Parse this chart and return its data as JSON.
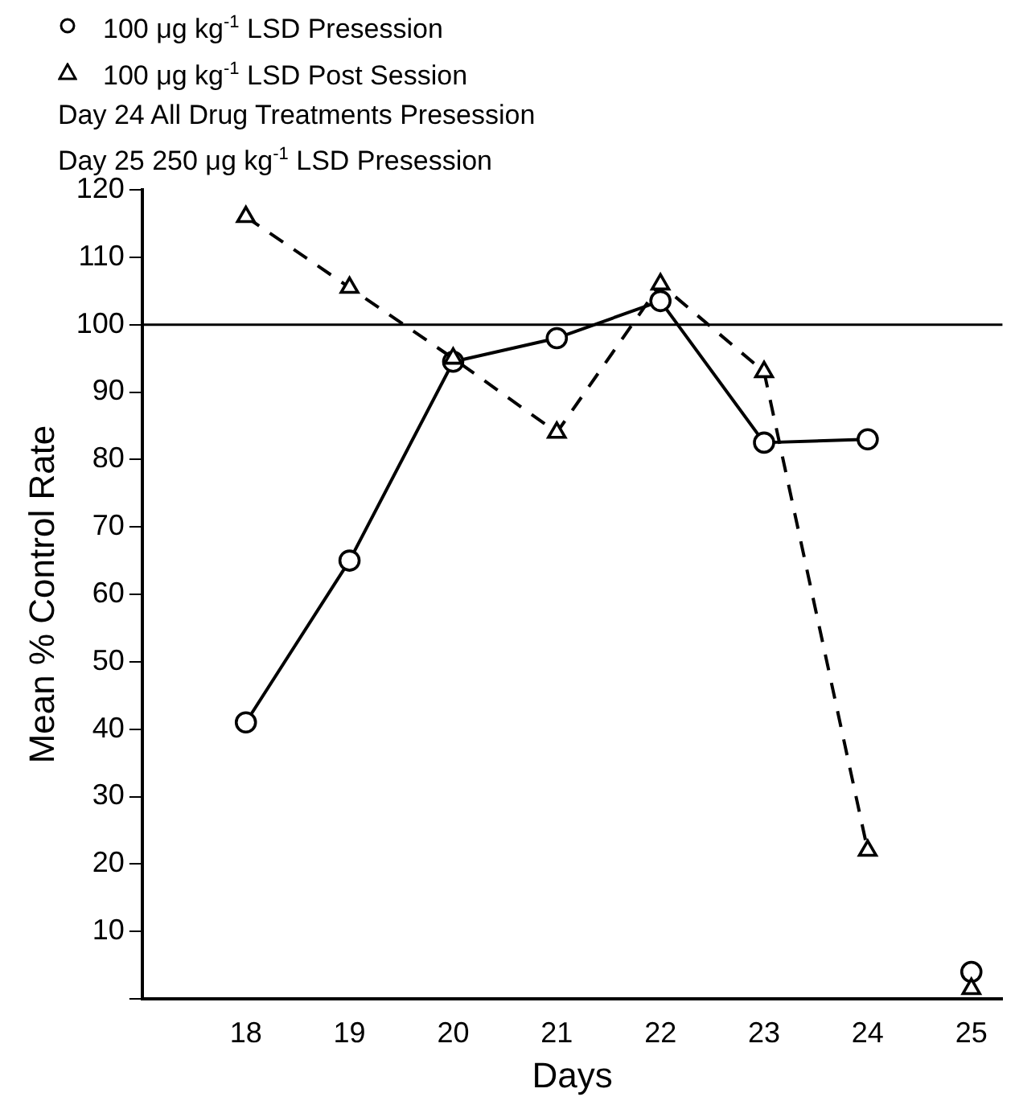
{
  "chart_data": {
    "type": "line",
    "xlabel": "Days",
    "ylabel": "Mean % Control Rate",
    "xlim": [
      17,
      25.3
    ],
    "xticks": [
      18,
      19,
      20,
      21,
      22,
      23,
      24,
      25
    ],
    "ylim": [
      0,
      120
    ],
    "yticks": [
      {
        "value": 0,
        "label": null
      },
      10,
      20,
      30,
      40,
      50,
      60,
      70,
      80,
      90,
      100,
      110,
      120
    ],
    "grid": false,
    "legend": "top",
    "series": [
      {
        "name": "100 μg kg$^{-1}$ LSD Presession",
        "color": "#000000",
        "marker": "circle",
        "line_style": "solid",
        "x": [
          18,
          19,
          20,
          21,
          22,
          23,
          24
        ],
        "values": [
          41,
          65,
          94.5,
          98,
          103.5,
          82.5,
          83
        ]
      },
      {
        "name": "100 μg kg$^{-1}$ LSD Post Session",
        "color": "#000000",
        "marker": "triangle",
        "line_style": "dashed",
        "x": [
          18,
          19,
          20,
          21,
          22,
          23,
          24
        ],
        "values": [
          116,
          105.5,
          95,
          84,
          106,
          93,
          22
        ]
      },
      {
        "type": "scatter",
        "color": "#000000",
        "marker": "circle",
        "x": [
          25
        ],
        "values": [
          4
        ]
      },
      {
        "type": "scatter",
        "color": "#000000",
        "marker": "triangle",
        "x": [
          25
        ],
        "values": [
          1.5
        ]
      }
    ],
    "ref_lines": [
      {
        "axis": "y",
        "value": 100,
        "color": "#000000"
      }
    ],
    "annotations": [
      "Day 24 All Drug Treatments Presession",
      "Day 25 250 μg kg$^{-1}$ LSD Presession"
    ]
  }
}
